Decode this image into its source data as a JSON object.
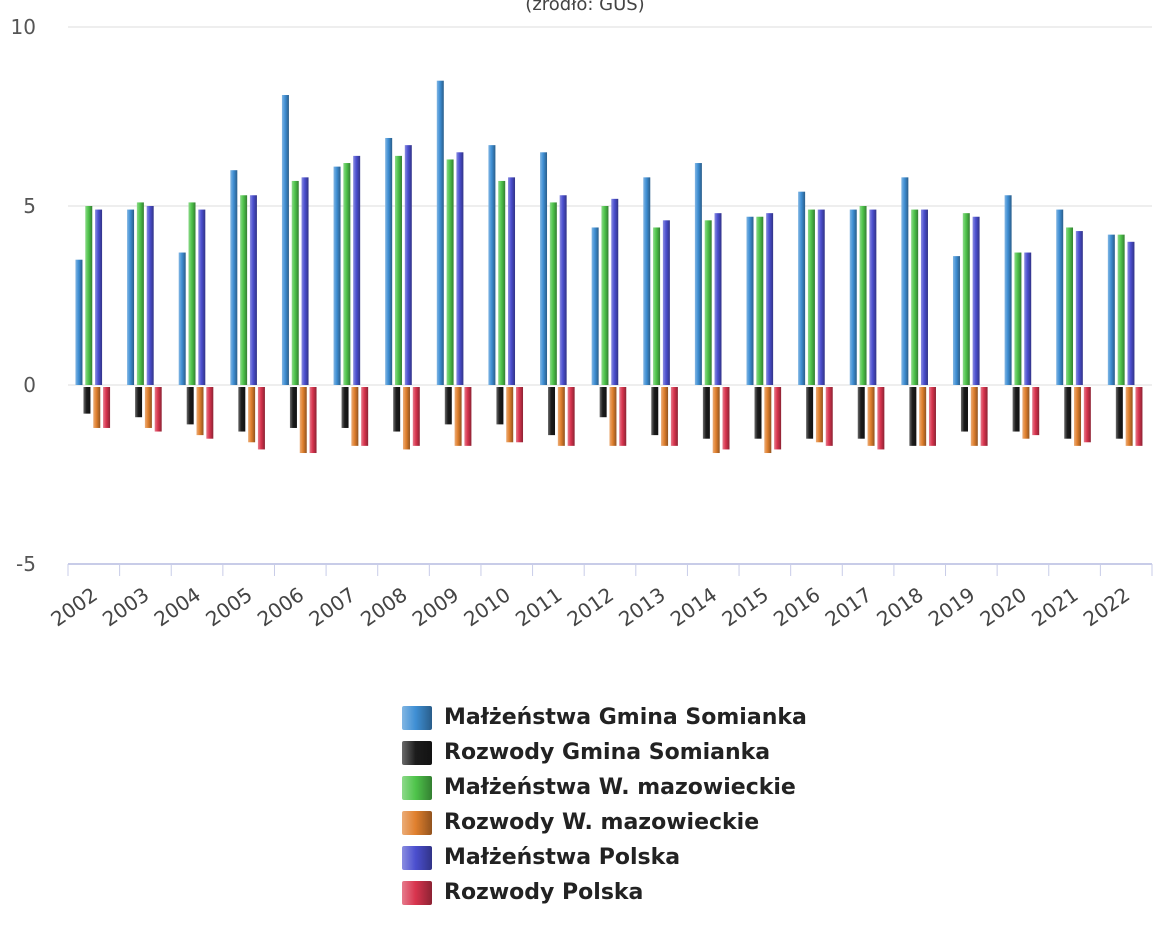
{
  "chart_data": {
    "type": "bar",
    "subtitle": "(źródło: GUS)",
    "categories": [
      "2002",
      "2003",
      "2004",
      "2005",
      "2006",
      "2007",
      "2008",
      "2009",
      "2010",
      "2011",
      "2012",
      "2013",
      "2014",
      "2015",
      "2016",
      "2017",
      "2018",
      "2019",
      "2020",
      "2021",
      "2022"
    ],
    "ylim": [
      -5,
      10
    ],
    "yticks": [
      "10",
      "5",
      "0",
      "-5"
    ],
    "grid": true,
    "legend_position": "bottom",
    "series": [
      {
        "name": "Małżeństwa Gmina Somianka",
        "color": "#3f8fd4",
        "values": [
          3.5,
          4.9,
          3.7,
          6.0,
          8.1,
          6.1,
          6.9,
          8.5,
          6.7,
          6.5,
          4.4,
          5.8,
          6.2,
          4.7,
          5.4,
          4.9,
          5.8,
          3.6,
          5.3,
          4.9,
          4.2
        ]
      },
      {
        "name": "Rozwody Gmina Somianka",
        "color": "#1c1c1c",
        "values": [
          -0.8,
          -0.9,
          -1.1,
          -1.3,
          -1.2,
          -1.2,
          -1.3,
          -1.1,
          -1.1,
          -1.4,
          -0.9,
          -1.4,
          -1.5,
          -1.5,
          -1.5,
          -1.5,
          -1.7,
          -1.3,
          -1.3,
          -1.5,
          -1.5
        ]
      },
      {
        "name": "Małżeństwa W. mazowieckie",
        "color": "#4fc44b",
        "values": [
          5.0,
          5.1,
          5.1,
          5.3,
          5.7,
          6.2,
          6.4,
          6.3,
          5.7,
          5.1,
          5.0,
          4.4,
          4.6,
          4.7,
          4.9,
          5.0,
          4.9,
          4.8,
          3.7,
          4.4,
          4.2
        ]
      },
      {
        "name": "Rozwody W. mazowieckie",
        "color": "#e0802e",
        "values": [
          -1.2,
          -1.2,
          -1.4,
          -1.6,
          -1.9,
          -1.7,
          -1.8,
          -1.7,
          -1.6,
          -1.7,
          -1.7,
          -1.7,
          -1.9,
          -1.9,
          -1.6,
          -1.7,
          -1.7,
          -1.7,
          -1.5,
          -1.7,
          -1.7
        ]
      },
      {
        "name": "Małżeństwa Polska",
        "color": "#4b4fcf",
        "values": [
          4.9,
          5.0,
          4.9,
          5.3,
          5.8,
          6.4,
          6.7,
          6.5,
          5.8,
          5.3,
          5.2,
          4.6,
          4.8,
          4.8,
          4.9,
          4.9,
          4.9,
          4.7,
          3.7,
          4.3,
          4.0
        ]
      },
      {
        "name": "Rozwody Polska",
        "color": "#d8344e",
        "values": [
          -1.2,
          -1.3,
          -1.5,
          -1.8,
          -1.9,
          -1.7,
          -1.7,
          -1.7,
          -1.6,
          -1.7,
          -1.7,
          -1.7,
          -1.8,
          -1.8,
          -1.7,
          -1.8,
          -1.7,
          -1.7,
          -1.4,
          -1.6,
          -1.7
        ]
      }
    ]
  }
}
